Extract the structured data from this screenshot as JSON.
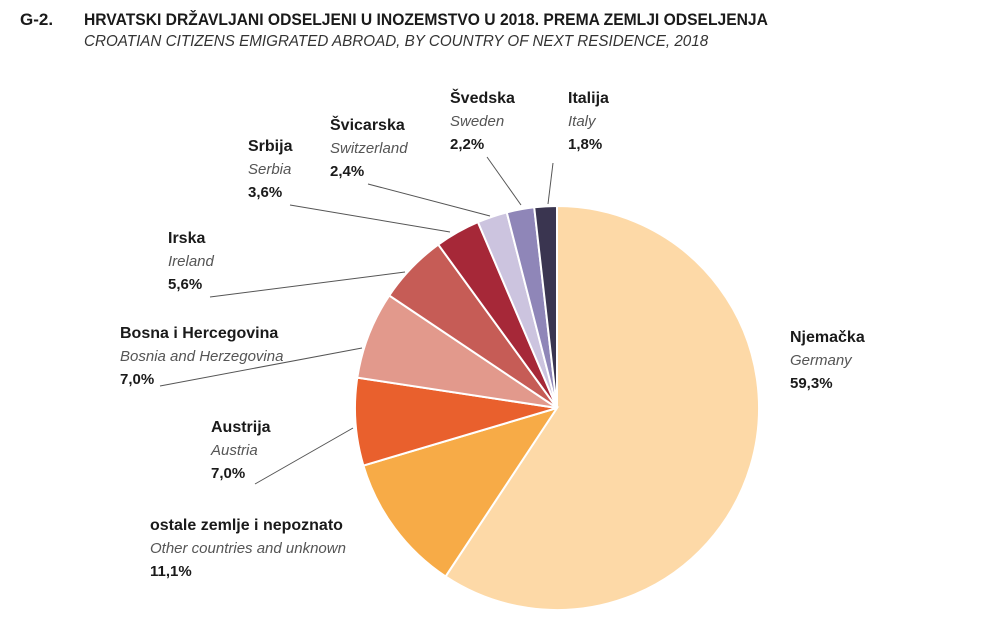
{
  "header": {
    "figure_id": "G-2.",
    "title_hr": "HRVATSKI DRŽAVLJANI ODSELJENI U INOZEMSTVO U 2018. PREMA ZEMLJI ODSELJENJA",
    "title_en": "CROATIAN CITIZENS EMIGRATED ABROAD, BY COUNTRY OF NEXT RESIDENCE, 2018"
  },
  "chart_data": {
    "type": "pie",
    "title": "HRVATSKI DRŽAVLJANI ODSELJENI U INOZEMSTVO U 2018. PREMA ZEMLJI ODSELJENJA",
    "subtitle": "CROATIAN CITIZENS EMIGRATED ABROAD, BY COUNTRY OF NEXT RESIDENCE, 2018",
    "slices": [
      {
        "name_hr": "Njemačka",
        "name_en": "Germany",
        "value": 59.3,
        "value_label": "59,3%",
        "color": "#FDD9A7"
      },
      {
        "name_hr": "ostale zemlje i nepoznato",
        "name_en": "Other countries and unknown",
        "value": 11.1,
        "value_label": "11,1%",
        "color": "#F7AB47"
      },
      {
        "name_hr": "Austrija",
        "name_en": "Austria",
        "value": 7.0,
        "value_label": "7,0%",
        "color": "#E9602D"
      },
      {
        "name_hr": "Bosna i Hercegovina",
        "name_en": "Bosnia and Herzegovina",
        "value": 7.0,
        "value_label": "7,0%",
        "color": "#E2998C"
      },
      {
        "name_hr": "Irska",
        "name_en": "Ireland",
        "value": 5.6,
        "value_label": "5,6%",
        "color": "#C65C56"
      },
      {
        "name_hr": "Srbija",
        "name_en": "Serbia",
        "value": 3.6,
        "value_label": "3,6%",
        "color": "#A62838"
      },
      {
        "name_hr": "Švicarska",
        "name_en": "Switzerland",
        "value": 2.4,
        "value_label": "2,4%",
        "color": "#CCC4DF"
      },
      {
        "name_hr": "Švedska",
        "name_en": "Sweden",
        "value": 2.2,
        "value_label": "2,2%",
        "color": "#8F86B8"
      },
      {
        "name_hr": "Italija",
        "name_en": "Italy",
        "value": 1.8,
        "value_label": "1,8%",
        "color": "#3A3550"
      }
    ]
  }
}
